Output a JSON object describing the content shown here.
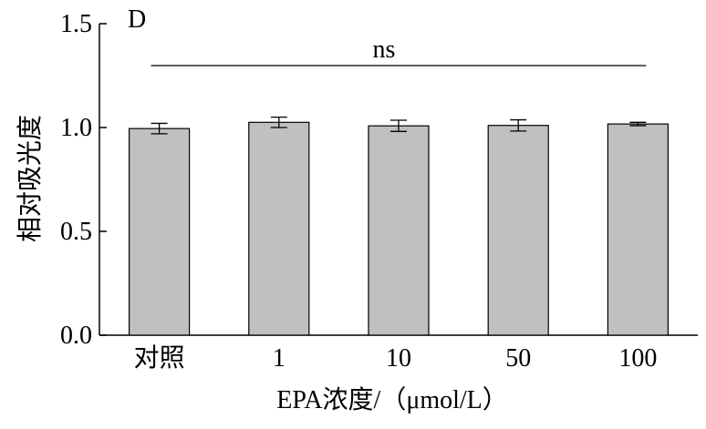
{
  "panel_label": "D",
  "chart_data": {
    "type": "bar",
    "categories": [
      "对照",
      "1",
      "10",
      "50",
      "100"
    ],
    "values": [
      0.995,
      1.025,
      1.008,
      1.01,
      1.017
    ],
    "errors": [
      0.025,
      0.025,
      0.027,
      0.027,
      0.008
    ],
    "xlabel": "EPA浓度/（μmol/L）",
    "ylabel": "相对吸光度",
    "ylim": [
      0,
      1.5
    ],
    "yticks": [
      "0.0",
      "0.5",
      "1.0",
      "1.5"
    ],
    "annotation": "ns",
    "bar_color": "#c0c0c0",
    "grid": false,
    "legend": "none"
  }
}
